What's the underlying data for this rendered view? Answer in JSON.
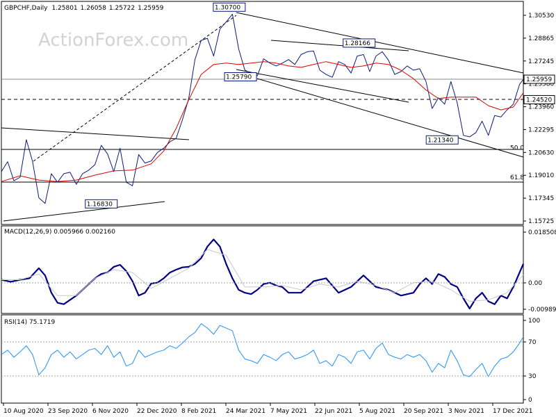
{
  "chart_data": [
    {
      "type": "line",
      "panel": "price",
      "title": "GBPCHF,Daily",
      "ohlc_readout": [
        "1.25801",
        "1.26058",
        "1.25722",
        "1.25959"
      ],
      "watermark": "ActionForex.com",
      "y_ticks": [
        "1.30530",
        "1.28865",
        "1.27245",
        "1.25580",
        "1.23960",
        "1.22295",
        "1.20630",
        "1.19010",
        "1.17345",
        "1.15725"
      ],
      "ylim": [
        1.1572,
        1.3145
      ],
      "series": [
        {
          "name": "",
          "color": "#0a1a7a",
          "x": [
            0,
            10,
            20,
            30,
            40,
            50,
            60,
            70,
            80,
            90,
            100,
            110,
            120,
            130,
            140,
            150,
            160,
            170,
            180,
            190,
            200,
            210,
            220,
            230,
            240,
            250,
            260,
            270,
            280,
            290,
            300,
            310,
            320,
            330,
            340,
            350,
            360,
            370,
            380,
            390,
            400,
            410,
            420,
            430,
            440,
            450,
            460,
            470,
            480,
            490,
            500,
            510,
            520,
            530,
            540,
            550,
            560,
            570,
            580,
            590,
            600,
            610,
            620,
            630,
            640,
            650,
            660,
            670,
            680,
            690,
            700,
            710,
            720,
            730,
            740,
            750,
            760,
            770,
            780,
            790,
            800,
            810,
            820,
            830,
            836
          ],
          "y": [
            1.1945,
            1.2015,
            1.188,
            1.1905,
            1.217,
            1.2015,
            1.176,
            1.172,
            1.193,
            1.187,
            1.193,
            1.194,
            1.1855,
            1.193,
            1.1955,
            1.1995,
            1.213,
            1.207,
            1.1945,
            1.211,
            1.187,
            1.1845,
            1.2065,
            1.2005,
            1.202,
            1.208,
            1.211,
            1.2155,
            1.218,
            1.231,
            1.246,
            1.2735,
            1.287,
            1.2885,
            1.276,
            1.295,
            1.3,
            1.3055,
            1.281,
            1.266,
            1.264,
            1.262,
            1.274,
            1.271,
            1.269,
            1.271,
            1.2735,
            1.27,
            1.277,
            1.279,
            1.2795,
            1.266,
            1.263,
            1.261,
            1.272,
            1.27,
            1.264,
            1.276,
            1.277,
            1.265,
            1.276,
            1.279,
            1.273,
            1.263,
            1.265,
            1.269,
            1.266,
            1.267,
            1.258,
            1.239,
            1.2465,
            1.242,
            1.258,
            1.243,
            1.22,
            1.219,
            1.222,
            1.23,
            1.22,
            1.234,
            1.233,
            1.238,
            1.242,
            1.256,
            1.2596
          ]
        },
        {
          "name": "",
          "color": "#e00000",
          "x": [
            0,
            30,
            60,
            90,
            120,
            150,
            180,
            210,
            240,
            260,
            280,
            300,
            320,
            340,
            360,
            380,
            400,
            420,
            440,
            460,
            480,
            500,
            520,
            540,
            560,
            580,
            600,
            620,
            640,
            660,
            680,
            700,
            720,
            740,
            760,
            780,
            800,
            820,
            836
          ],
          "y": [
            1.1875,
            1.1915,
            1.1885,
            1.1875,
            1.1885,
            1.192,
            1.195,
            1.1955,
            1.2,
            1.209,
            1.225,
            1.245,
            1.263,
            1.27,
            1.271,
            1.27,
            1.271,
            1.272,
            1.271,
            1.269,
            1.268,
            1.27,
            1.272,
            1.27,
            1.268,
            1.269,
            1.271,
            1.27,
            1.266,
            1.26,
            1.252,
            1.246,
            1.247,
            1.247,
            1.247,
            1.241,
            1.238,
            1.24,
            1.25
          ]
        }
      ],
      "annotations": [
        {
          "label": "1.30700",
          "x": 365,
          "y": 1.307
        },
        {
          "label": "1.28166",
          "x": 573,
          "y": 1.2817
        },
        {
          "label": "1.25790",
          "x": 383,
          "y": 1.2579
        },
        {
          "label": "1.21340",
          "x": 706,
          "y": 1.2134
        },
        {
          "label": "1.16830",
          "x": 160,
          "y": 1.1683
        }
      ],
      "level_labels": [
        {
          "label": "50.0",
          "y": 1.2085
        },
        {
          "label": "61.8",
          "y": 1.1875
        }
      ],
      "tags": [
        {
          "label": "1.25959",
          "y": 1.25959,
          "fill": "#ffffff"
        },
        {
          "label": "1.24520",
          "y": 1.2452,
          "fill": "#ffffff"
        }
      ]
    },
    {
      "type": "line",
      "panel": "macd",
      "title": "MACD(12,26,9) 0.005966 0.002160",
      "y_ticks": [
        "0.018508",
        "0.00",
        "-0.009891"
      ],
      "ylim": [
        -0.0112,
        0.0192
      ],
      "series": [
        {
          "name": "",
          "color": "#000080",
          "x": [
            0,
            15,
            30,
            45,
            60,
            70,
            80,
            90,
            100,
            120,
            140,
            150,
            160,
            170,
            180,
            190,
            200,
            210,
            220,
            230,
            240,
            250,
            260,
            270,
            280,
            290,
            300,
            310,
            320,
            330,
            340,
            350,
            360,
            370,
            380,
            390,
            400,
            410,
            420,
            430,
            440,
            450,
            460,
            480,
            500,
            520,
            540,
            560,
            580,
            600,
            620,
            640,
            660,
            670,
            680,
            690,
            700,
            710,
            720,
            730,
            740,
            750,
            760,
            770,
            780,
            790,
            800,
            810,
            820,
            830,
            836
          ],
          "y": [
            0.0005,
            -0.0002,
            0.0005,
            0.001,
            0.0045,
            0.002,
            -0.004,
            -0.0075,
            -0.008,
            -0.005,
            -0.001,
            0.001,
            0.0025,
            0.003,
            0.005,
            0.0057,
            0.0035,
            0.0,
            -0.005,
            -0.004,
            -0.0008,
            -0.0005,
            0.001,
            0.003,
            0.004,
            0.0048,
            0.005,
            0.006,
            0.008,
            0.012,
            0.0145,
            0.012,
            0.006,
            0.001,
            -0.003,
            -0.004,
            -0.0045,
            -0.003,
            -0.001,
            -0.0005,
            -0.0015,
            -0.002,
            -0.004,
            -0.004,
            0.0,
            0.001,
            -0.004,
            -0.002,
            0.002,
            -0.002,
            -0.003,
            -0.005,
            -0.004,
            -0.001,
            0.001,
            -0.001,
            0.0025,
            0.0015,
            -0.001,
            -0.002,
            -0.006,
            -0.0095,
            -0.006,
            -0.004,
            -0.007,
            -0.008,
            -0.005,
            -0.006,
            -0.002,
            0.003,
            0.006
          ]
        },
        {
          "name": "",
          "color": "#c8c8c8",
          "x": [
            0,
            30,
            60,
            90,
            120,
            150,
            180,
            210,
            240,
            270,
            300,
            330,
            360,
            390,
            420,
            450,
            480,
            510,
            540,
            570,
            600,
            630,
            660,
            690,
            720,
            750,
            780,
            810,
            836
          ],
          "y": [
            0.0005,
            0.0005,
            0.0025,
            -0.005,
            -0.005,
            0.001,
            0.004,
            0.003,
            -0.0025,
            0.001,
            0.0045,
            0.011,
            0.009,
            -0.002,
            -0.002,
            -0.0015,
            -0.003,
            -0.001,
            -0.002,
            0.0,
            -0.0015,
            -0.004,
            -0.0005,
            0.0,
            -0.003,
            -0.007,
            -0.0065,
            -0.004,
            0.0022
          ]
        }
      ]
    },
    {
      "type": "line",
      "panel": "rsi",
      "title": "RSI(14) 75.1719",
      "y_ticks": [
        "100",
        "70",
        "30",
        "0"
      ],
      "ylim": [
        0,
        100
      ],
      "series": [
        {
          "name": "",
          "color": "#1e90ff",
          "x": [
            0,
            10,
            20,
            30,
            40,
            50,
            60,
            70,
            80,
            90,
            100,
            110,
            120,
            130,
            140,
            150,
            160,
            170,
            180,
            190,
            200,
            210,
            220,
            230,
            240,
            250,
            260,
            270,
            280,
            290,
            300,
            310,
            320,
            330,
            340,
            350,
            360,
            370,
            380,
            390,
            400,
            410,
            420,
            430,
            440,
            450,
            460,
            470,
            480,
            490,
            500,
            510,
            520,
            530,
            540,
            550,
            560,
            570,
            580,
            590,
            600,
            610,
            620,
            630,
            640,
            650,
            660,
            670,
            680,
            690,
            700,
            710,
            720,
            730,
            740,
            750,
            760,
            770,
            780,
            790,
            800,
            810,
            820,
            830,
            836
          ],
          "y": [
            55,
            60,
            52,
            58,
            65,
            55,
            32,
            40,
            55,
            60,
            52,
            58,
            50,
            55,
            60,
            62,
            55,
            65,
            52,
            58,
            42,
            45,
            60,
            52,
            55,
            58,
            60,
            65,
            62,
            68,
            75,
            80,
            90,
            85,
            78,
            88,
            85,
            82,
            60,
            50,
            48,
            45,
            55,
            52,
            48,
            55,
            58,
            50,
            52,
            55,
            60,
            45,
            48,
            42,
            55,
            52,
            45,
            58,
            60,
            50,
            62,
            68,
            55,
            52,
            50,
            55,
            52,
            55,
            48,
            35,
            45,
            40,
            60,
            48,
            32,
            30,
            38,
            45,
            30,
            42,
            50,
            52,
            58,
            68,
            75
          ]
        }
      ],
      "levels": [
        70,
        30
      ]
    }
  ],
  "x_axis": {
    "labels": [
      "10 Aug 2020",
      "23 Sep 2020",
      "6 Nov 2020",
      "22 Dec 2020",
      "8 Feb 2021",
      "24 Mar 2021",
      "7 May 2021",
      "22 Jun 2021",
      "5 Aug 2021",
      "20 Sep 2021",
      "3 Nov 2021",
      "17 Dec 2021"
    ]
  }
}
